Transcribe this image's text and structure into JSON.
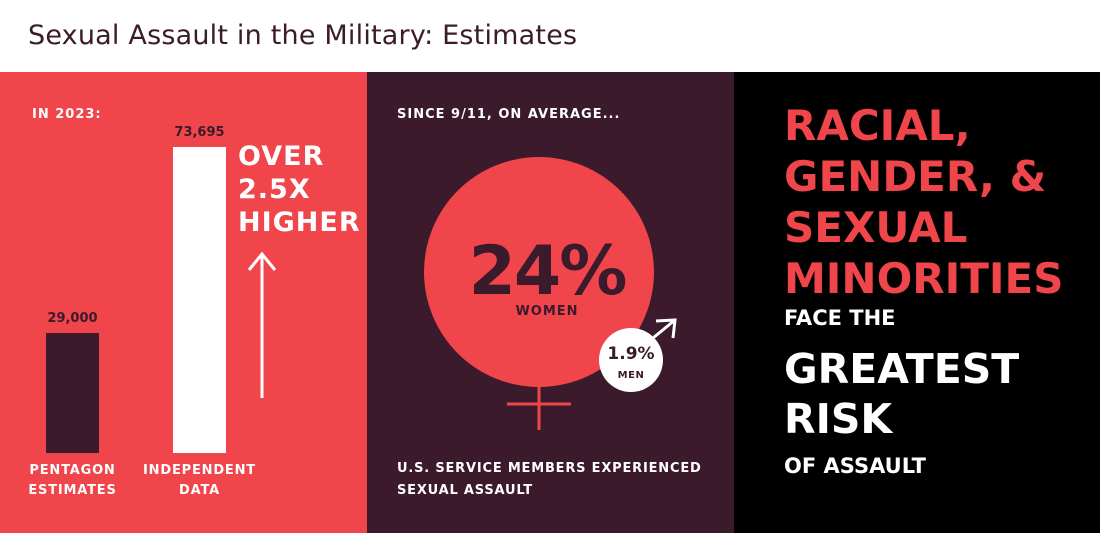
{
  "title": "Sexual Assault in the Military: Estimates",
  "colors": {
    "red": "#f0454b",
    "plum": "#3a1a2b",
    "black": "#000000",
    "white": "#ffffff"
  },
  "chart_data": {
    "type": "bar",
    "header": "IN 2023:",
    "categories": [
      "PENTAGON ESTIMATES",
      "INDEPENDENT DATA"
    ],
    "category_lines": [
      [
        "PENTAGON",
        "ESTIMATES"
      ],
      [
        "INDEPENDENT",
        "DATA"
      ]
    ],
    "values": [
      29000,
      73695
    ],
    "value_labels": [
      "29,000",
      "73,695"
    ],
    "bar_colors": [
      "#3a1a2b",
      "#ffffff"
    ],
    "callout_lines": [
      "OVER",
      "2.5X",
      "HIGHER"
    ],
    "callout_icon": "up-arrow-icon"
  },
  "middle": {
    "header": "SINCE 9/11, ON AVERAGE...",
    "women_pct": 24,
    "women_pct_label": "24%",
    "women_label": "WOMEN",
    "men_pct": 1.9,
    "men_pct_label": "1.9%",
    "men_label": "MEN",
    "female_icon": "venus-symbol-icon",
    "male_icon": "mars-symbol-icon",
    "footnote_lines": [
      "U.S. SERVICE MEMBERS EXPERIENCED",
      "SEXUAL ASSAULT"
    ]
  },
  "right": {
    "headline_lines": [
      "RACIAL,",
      "GENDER, &",
      "SEXUAL",
      "MINORITIES"
    ],
    "face_the": "FACE THE",
    "greatest_lines": [
      "GREATEST",
      "RISK"
    ],
    "of_assault": "OF ASSAULT"
  }
}
